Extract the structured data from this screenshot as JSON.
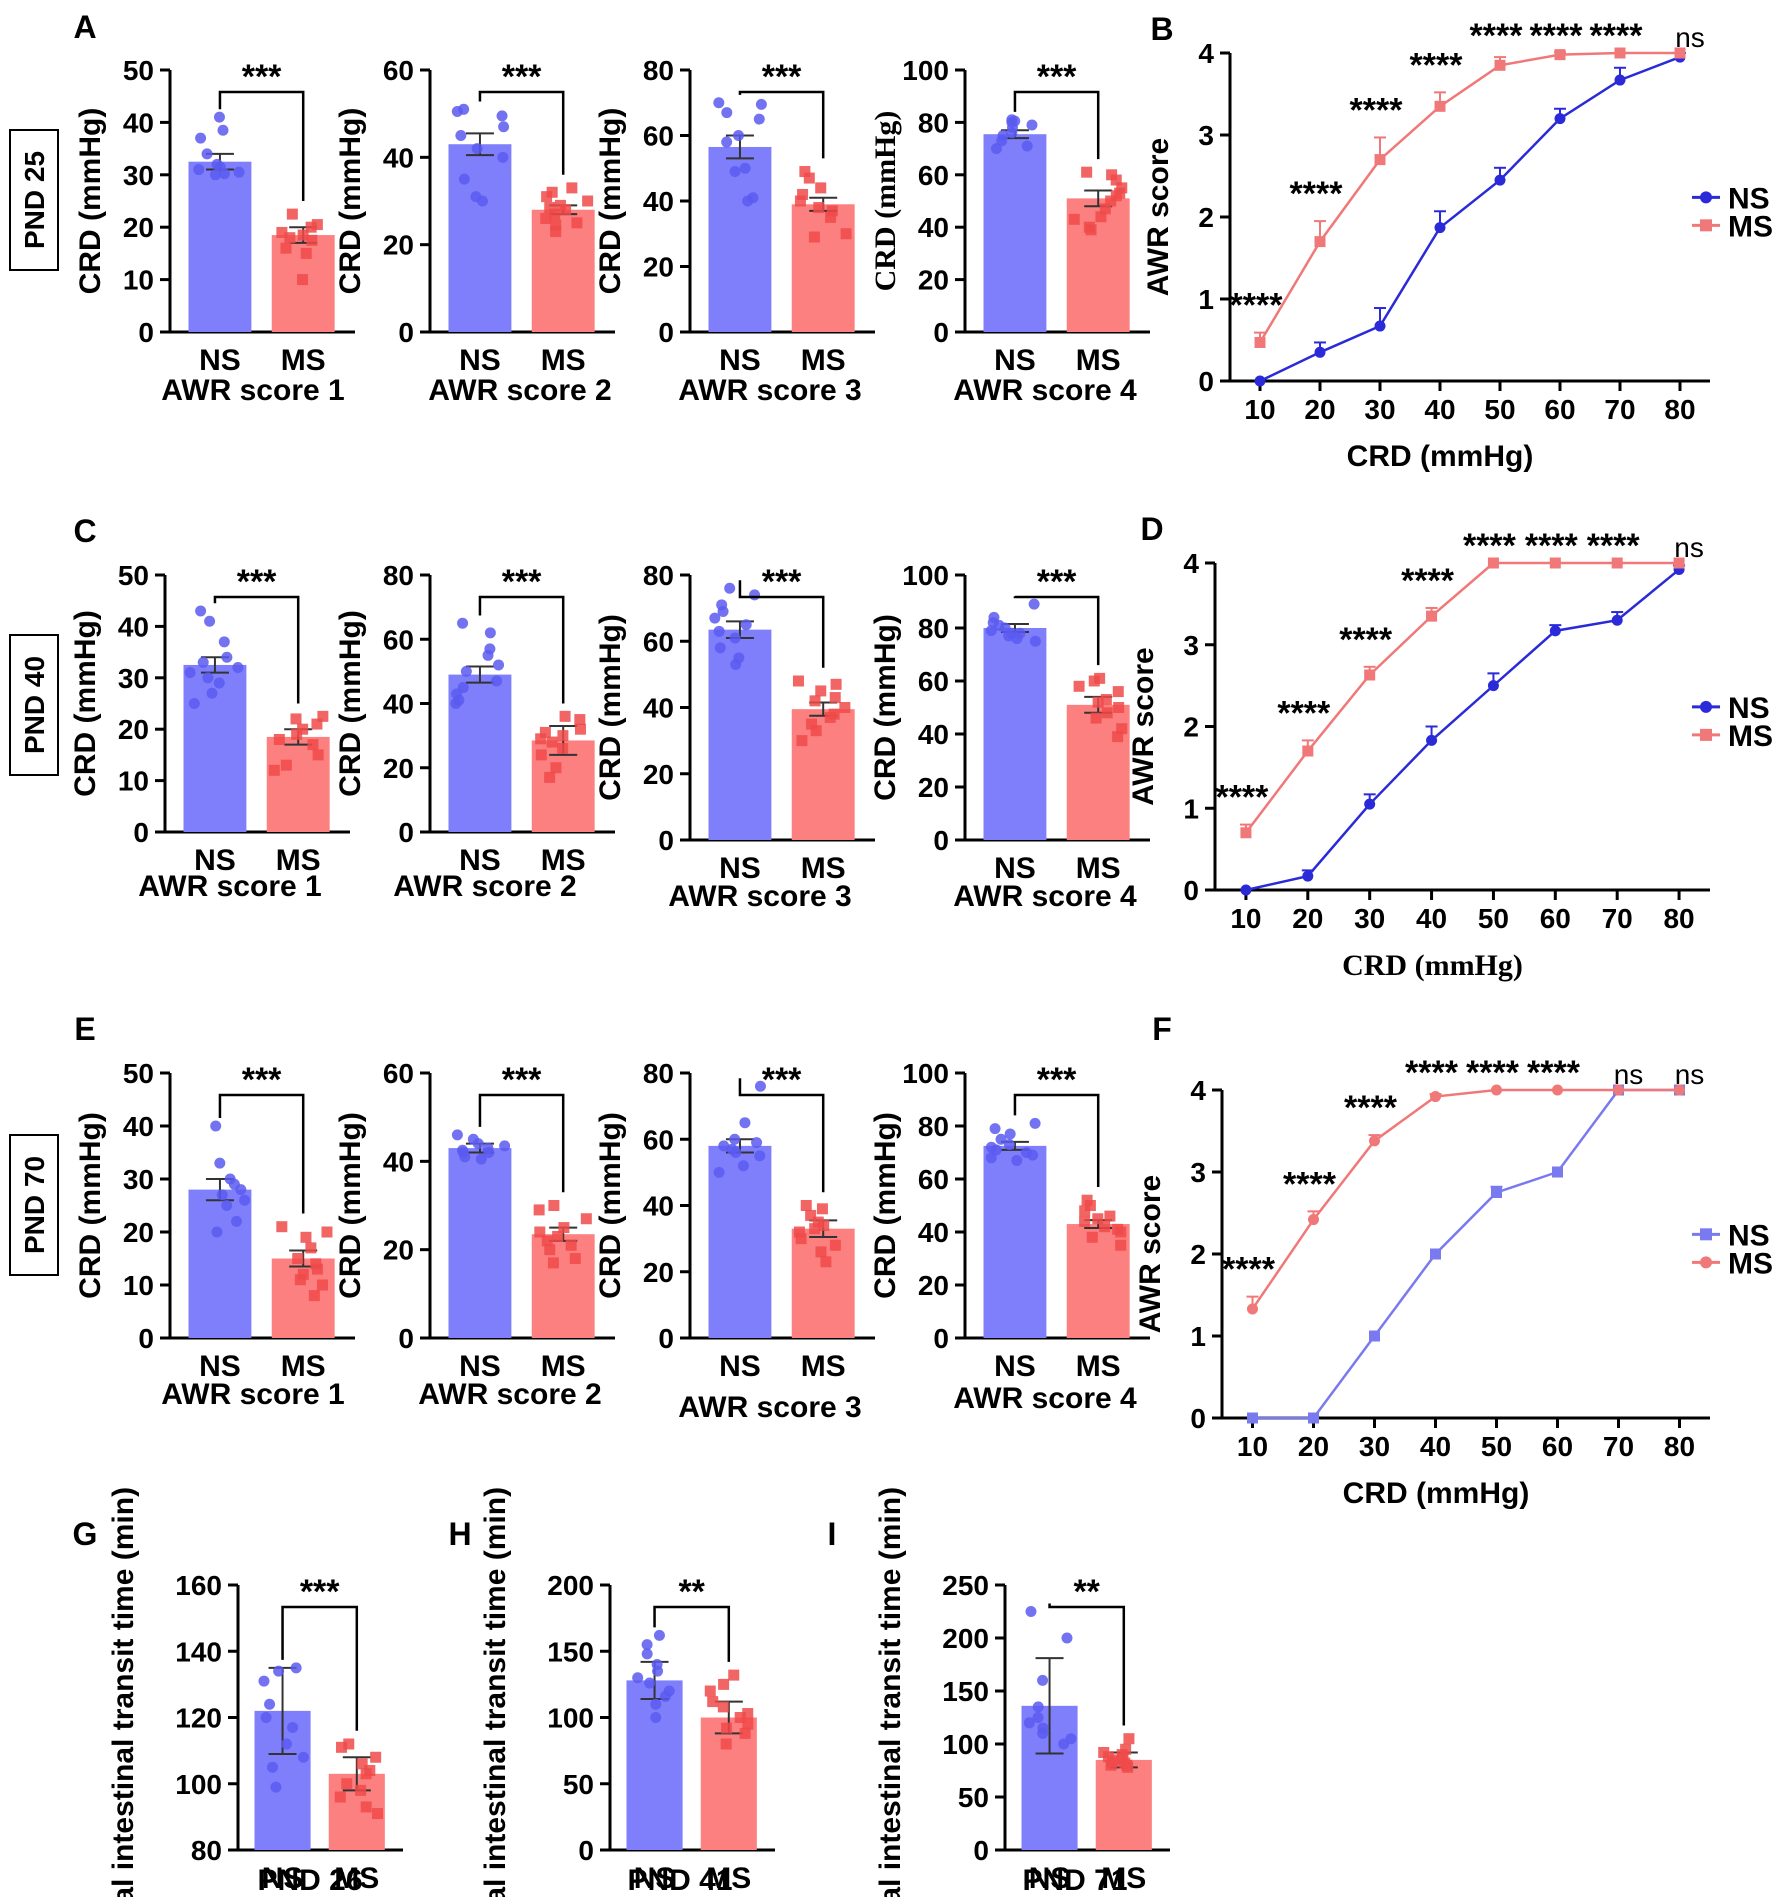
{
  "colors": {
    "ns": "#7f7ffc",
    "ns_dot": "#5a5af0",
    "ms": "#fc8080",
    "ms_dot": "#f04a4a",
    "ns_line_dark": "#2a2ad8",
    "ns_line_light": "#7a7af0",
    "ms_line": "#f07878"
  },
  "rows": [
    {
      "row_label": "PND 25"
    },
    {
      "row_label": "PND 40"
    },
    {
      "row_label": "PND 70"
    }
  ],
  "chart_data": [
    {
      "panel": "A",
      "type": "bar",
      "row_label": "PND 25",
      "title": "AWR score 1",
      "ylabel": "CRD (mmHg)",
      "ylim": [
        0,
        50
      ],
      "yticks": [
        "0",
        "10",
        "20",
        "30",
        "40",
        "50"
      ],
      "categories": [
        "NS",
        "MS"
      ],
      "values": [
        32.5,
        18.5
      ],
      "errors": [
        1.5,
        1.5
      ],
      "points": [
        [
          41,
          38.5,
          37,
          34,
          32,
          31.5,
          31,
          30.5,
          30.2,
          30
        ],
        [
          22.5,
          20.5,
          20,
          19,
          18.5,
          18,
          17.5,
          16,
          15,
          10
        ]
      ],
      "significance": "***"
    },
    {
      "panel": "",
      "type": "bar",
      "row_label": "PND 25",
      "title": "AWR score 2",
      "ylabel": "CRD (mmHg)",
      "ylim": [
        0,
        60
      ],
      "yticks": [
        "0",
        "20",
        "40",
        "60"
      ],
      "categories": [
        "NS",
        "MS"
      ],
      "values": [
        43,
        28
      ],
      "errors": [
        2.5,
        1
      ],
      "points": [
        [
          51,
          50.5,
          49.5,
          47,
          45,
          42,
          40,
          35,
          31,
          30
        ],
        [
          33,
          32,
          31,
          30,
          29,
          28.5,
          28,
          27,
          26,
          25,
          24.5,
          23
        ]
      ],
      "significance": "***"
    },
    {
      "panel": "",
      "type": "bar",
      "row_label": "PND 25",
      "title": "AWR score 3",
      "ylabel": "CRD (mmHg)",
      "ylim": [
        0,
        80
      ],
      "yticks": [
        "0",
        "20",
        "40",
        "60",
        "80"
      ],
      "categories": [
        "NS",
        "MS"
      ],
      "values": [
        56.5,
        39
      ],
      "errors": [
        3.5,
        2
      ],
      "points": [
        [
          70,
          69.5,
          67,
          65,
          60,
          58,
          50,
          49,
          41,
          40
        ],
        [
          49,
          47,
          44,
          42,
          40,
          38,
          37,
          35,
          30,
          29
        ]
      ],
      "significance": "***"
    },
    {
      "panel": "",
      "type": "bar",
      "row_label": "PND 25",
      "title": "AWR score 4",
      "ylabel": "CRD (mmHg)",
      "ylim": [
        0,
        100
      ],
      "yticks": [
        "0",
        "20",
        "40",
        "60",
        "80",
        "100"
      ],
      "categories": [
        "NS",
        "MS"
      ],
      "values": [
        75.5,
        51
      ],
      "errors": [
        1.5,
        3
      ],
      "points": [
        [
          81,
          80.5,
          80,
          79,
          78,
          76,
          75,
          73,
          71,
          70
        ],
        [
          61,
          60,
          58,
          55,
          53,
          52,
          50,
          47,
          44,
          43,
          40,
          39
        ]
      ],
      "significance": "***",
      "serif_ylabel": true
    },
    {
      "panel": "B",
      "type": "line",
      "title": "",
      "xlabel": "CRD (mmHg)",
      "ylabel": "AWR score",
      "xlim": [
        5,
        85
      ],
      "ylim": [
        0,
        4
      ],
      "x": [
        10,
        20,
        30,
        40,
        50,
        60,
        70,
        80
      ],
      "xticks": [
        "10",
        "20",
        "30",
        "40",
        "50",
        "60",
        "70",
        "80"
      ],
      "yticks": [
        "0",
        "1",
        "2",
        "3",
        "4"
      ],
      "series": [
        {
          "name": "NS",
          "marker": "circle",
          "values": [
            0,
            0.35,
            0.67,
            1.87,
            2.45,
            3.2,
            3.67,
            3.95
          ],
          "errors": [
            0,
            0.12,
            0.22,
            0.2,
            0.15,
            0.12,
            0.15,
            0.05
          ]
        },
        {
          "name": "MS",
          "marker": "square",
          "values": [
            0.47,
            1.7,
            2.7,
            3.35,
            3.85,
            3.98,
            4.0,
            4.0
          ],
          "errors": [
            0.12,
            0.25,
            0.27,
            0.17,
            0.1,
            0.03,
            0,
            0
          ]
        }
      ],
      "significance": [
        "****",
        "****",
        "****",
        "****",
        "****",
        "****",
        "****",
        "ns"
      ],
      "legend": "right"
    },
    {
      "panel": "C",
      "type": "bar",
      "row_label": "PND 40",
      "title": "AWR score 1",
      "ylabel": "CRD (mmHg)",
      "ylim": [
        0,
        50
      ],
      "yticks": [
        "0",
        "10",
        "20",
        "30",
        "40",
        "50"
      ],
      "categories": [
        "NS",
        "MS"
      ],
      "values": [
        32.5,
        18.5
      ],
      "errors": [
        1.5,
        1.5
      ],
      "points": [
        [
          43,
          41,
          37,
          34,
          33,
          32,
          31,
          30,
          29,
          27,
          25
        ],
        [
          22.5,
          22,
          21,
          20,
          19,
          18,
          17,
          15,
          13,
          12
        ]
      ],
      "significance": "***"
    },
    {
      "panel": "",
      "type": "bar",
      "row_label": "PND 40",
      "title": "AWR score 2",
      "ylabel": "CRD (mmHg)",
      "ylim": [
        0,
        80
      ],
      "yticks": [
        "0",
        "20",
        "40",
        "60",
        "80"
      ],
      "categories": [
        "NS",
        "MS"
      ],
      "values": [
        49,
        28.5
      ],
      "errors": [
        2.5,
        4.5
      ],
      "points": [
        [
          65,
          62,
          57,
          55,
          52,
          50,
          47,
          45,
          43,
          41,
          40
        ],
        [
          36,
          35,
          32,
          31,
          30,
          29,
          28,
          26,
          24,
          20,
          17
        ]
      ],
      "significance": "***"
    },
    {
      "panel": "",
      "type": "bar",
      "row_label": "PND 40",
      "title": "AWR score 3",
      "ylabel": "CRD (mmHg)",
      "ylim": [
        0,
        80
      ],
      "yticks": [
        "0",
        "20",
        "40",
        "60",
        "80"
      ],
      "categories": [
        "NS",
        "MS"
      ],
      "values": [
        63.5,
        39.5
      ],
      "errors": [
        2.5,
        2
      ],
      "points": [
        [
          76,
          74,
          71,
          69,
          67,
          65,
          63,
          61,
          58,
          55,
          53
        ],
        [
          48,
          47,
          45,
          43,
          42,
          40,
          38,
          37,
          35,
          33,
          30
        ]
      ],
      "significance": "***"
    },
    {
      "panel": "",
      "type": "bar",
      "row_label": "PND 40",
      "title": "AWR score 4",
      "ylabel": "CRD (mmHg)",
      "ylim": [
        0,
        100
      ],
      "yticks": [
        "0",
        "20",
        "40",
        "60",
        "80",
        "100"
      ],
      "categories": [
        "NS",
        "MS"
      ],
      "values": [
        80,
        51
      ],
      "errors": [
        1.5,
        3
      ],
      "points": [
        [
          89,
          84,
          82,
          81,
          80,
          79,
          78,
          78,
          77,
          76,
          75
        ],
        [
          61,
          60,
          58,
          56,
          53,
          52,
          50,
          48,
          46,
          42,
          39
        ]
      ],
      "significance": "***"
    },
    {
      "panel": "D",
      "type": "line",
      "title": "",
      "xlabel": "CRD (mmHg)",
      "ylabel": "AWR score",
      "xlim": [
        5,
        85
      ],
      "ylim": [
        0,
        4
      ],
      "x": [
        10,
        20,
        30,
        40,
        50,
        60,
        70,
        80
      ],
      "xticks": [
        "10",
        "20",
        "30",
        "40",
        "50",
        "60",
        "70",
        "80"
      ],
      "yticks": [
        "0",
        "1",
        "2",
        "3",
        "4"
      ],
      "series": [
        {
          "name": "NS",
          "marker": "circle",
          "values": [
            0,
            0.17,
            1.05,
            1.83,
            2.5,
            3.17,
            3.3,
            3.92
          ],
          "errors": [
            0,
            0.07,
            0.12,
            0.17,
            0.15,
            0.07,
            0.1,
            0.05
          ]
        },
        {
          "name": "MS",
          "marker": "square",
          "values": [
            0.7,
            1.7,
            2.63,
            3.35,
            4.0,
            4.0,
            4.0,
            4.0
          ],
          "errors": [
            0.1,
            0.13,
            0.1,
            0.1,
            0,
            0,
            0,
            0
          ]
        }
      ],
      "significance": [
        "****",
        "****",
        "****",
        "****",
        "****",
        "****",
        "****",
        "ns"
      ],
      "legend": "right",
      "serif_xlabel": true
    },
    {
      "panel": "E",
      "type": "bar",
      "row_label": "PND 70",
      "title": "AWR score 1",
      "ylabel": "CRD (mmHg)",
      "ylim": [
        0,
        50
      ],
      "yticks": [
        "0",
        "10",
        "20",
        "30",
        "40",
        "50"
      ],
      "categories": [
        "NS",
        "MS"
      ],
      "values": [
        28,
        15
      ],
      "errors": [
        2,
        1.5
      ],
      "points": [
        [
          40,
          33,
          30,
          29,
          28,
          27,
          26,
          25,
          22,
          20
        ],
        [
          21,
          20,
          19,
          17,
          15,
          14,
          13,
          12,
          11,
          10,
          8
        ]
      ],
      "significance": "***"
    },
    {
      "panel": "",
      "type": "bar",
      "row_label": "PND 70",
      "title": "AWR score 2",
      "ylabel": "CRD (mmHg)",
      "ylim": [
        0,
        60
      ],
      "yticks": [
        "0",
        "20",
        "40",
        "60"
      ],
      "categories": [
        "NS",
        "MS"
      ],
      "values": [
        43,
        23.5
      ],
      "errors": [
        1,
        1.5
      ],
      "points": [
        [
          46,
          45,
          44,
          43.5,
          43,
          42.5,
          42,
          42,
          41,
          40.5
        ],
        [
          30,
          29,
          27,
          25,
          24,
          23,
          22,
          21,
          20,
          18,
          17
        ]
      ],
      "significance": "***"
    },
    {
      "panel": "",
      "type": "bar",
      "row_label": "PND 70",
      "title": "AWR score 3",
      "ylabel": "CRD (mmHg)",
      "ylim": [
        0,
        80
      ],
      "yticks": [
        "0",
        "20",
        "40",
        "60",
        "80"
      ],
      "categories": [
        "NS",
        "MS"
      ],
      "values": [
        58,
        33
      ],
      "errors": [
        2,
        2.5
      ],
      "points": [
        [
          76,
          65,
          60,
          59,
          58,
          57,
          56,
          55,
          52,
          50
        ],
        [
          40,
          39,
          37,
          35,
          34,
          33,
          32,
          30,
          28,
          26,
          23
        ]
      ],
      "significance": "***"
    },
    {
      "panel": "",
      "type": "bar",
      "row_label": "PND 70",
      "title": "AWR score 4",
      "ylabel": "CRD (mmHg)",
      "ylim": [
        0,
        100
      ],
      "yticks": [
        "0",
        "20",
        "40",
        "60",
        "80",
        "100"
      ],
      "categories": [
        "NS",
        "MS"
      ],
      "values": [
        72.5,
        43
      ],
      "errors": [
        1.5,
        1.5
      ],
      "points": [
        [
          81,
          79,
          77,
          75,
          73,
          72,
          71,
          70,
          69,
          68,
          67
        ],
        [
          52,
          50,
          48,
          46,
          45,
          44,
          42,
          41,
          40,
          38,
          35
        ]
      ],
      "significance": "***"
    },
    {
      "panel": "F",
      "type": "line",
      "title": "",
      "xlabel": "CRD (mmHg)",
      "ylabel": "AWR score",
      "xlim": [
        5,
        85
      ],
      "ylim": [
        0,
        4
      ],
      "x": [
        10,
        20,
        30,
        40,
        50,
        60,
        70,
        80
      ],
      "xticks": [
        "10",
        "20",
        "30",
        "40",
        "50",
        "60",
        "70",
        "80"
      ],
      "yticks": [
        "0",
        "1",
        "2",
        "3",
        "4"
      ],
      "series": [
        {
          "name": "NS",
          "marker": "square",
          "values": [
            0,
            0,
            1.0,
            2.0,
            2.75,
            3.0,
            4.0,
            4.0
          ],
          "errors": [
            0,
            0,
            0,
            0,
            0.07,
            0,
            0,
            0
          ]
        },
        {
          "name": "MS",
          "marker": "circle",
          "values": [
            1.33,
            2.42,
            3.38,
            3.92,
            4.0,
            4.0,
            4.0,
            4.0
          ],
          "errors": [
            0.15,
            0.1,
            0.07,
            0.03,
            0,
            0,
            0,
            0
          ]
        }
      ],
      "significance": [
        "****",
        "****",
        "****",
        "****",
        "****",
        "****",
        "ns",
        "ns"
      ],
      "legend": "right"
    },
    {
      "panel": "G",
      "type": "bar",
      "title": "PND 26",
      "ylabel": "Total intestinal transit time (min)",
      "ylim": [
        80,
        160
      ],
      "yticks": [
        "80",
        "100",
        "120",
        "140",
        "160"
      ],
      "categories": [
        "NS",
        "MS"
      ],
      "values": [
        122,
        103
      ],
      "errors": [
        13,
        5
      ],
      "points": [
        [
          135,
          134,
          131,
          124,
          120,
          117,
          112,
          108,
          105,
          99
        ],
        [
          112,
          111,
          108,
          106,
          104,
          103,
          100,
          98,
          96,
          93,
          91
        ]
      ],
      "significance": "***"
    },
    {
      "panel": "H",
      "type": "bar",
      "title": "PND 41",
      "ylabel": "Total intestinal transit time (min)",
      "ylim": [
        0,
        200
      ],
      "yticks": [
        "0",
        "50",
        "100",
        "150",
        "200"
      ],
      "categories": [
        "NS",
        "MS"
      ],
      "values": [
        128,
        100
      ],
      "errors": [
        14,
        12
      ],
      "points": [
        [
          162,
          155,
          148,
          140,
          135,
          130,
          126,
          120,
          116,
          110,
          100
        ],
        [
          132,
          125,
          120,
          112,
          108,
          103,
          100,
          95,
          92,
          88,
          80
        ]
      ],
      "significance": "**"
    },
    {
      "panel": "I",
      "type": "bar",
      "title": "PND 71",
      "ylabel": "Total intestinal transit time (min)",
      "ylim": [
        0,
        250
      ],
      "yticks": [
        "0",
        "50",
        "100",
        "150",
        "200",
        "250"
      ],
      "categories": [
        "NS",
        "MS"
      ],
      "values": [
        136,
        85
      ],
      "errors": [
        45,
        7
      ],
      "points": [
        [
          225,
          200,
          160,
          135,
          125,
          120,
          115,
          110,
          105,
          100
        ],
        [
          105,
          95,
          92,
          90,
          88,
          86,
          85,
          83,
          82,
          80,
          80,
          78
        ]
      ],
      "significance": "**"
    }
  ]
}
